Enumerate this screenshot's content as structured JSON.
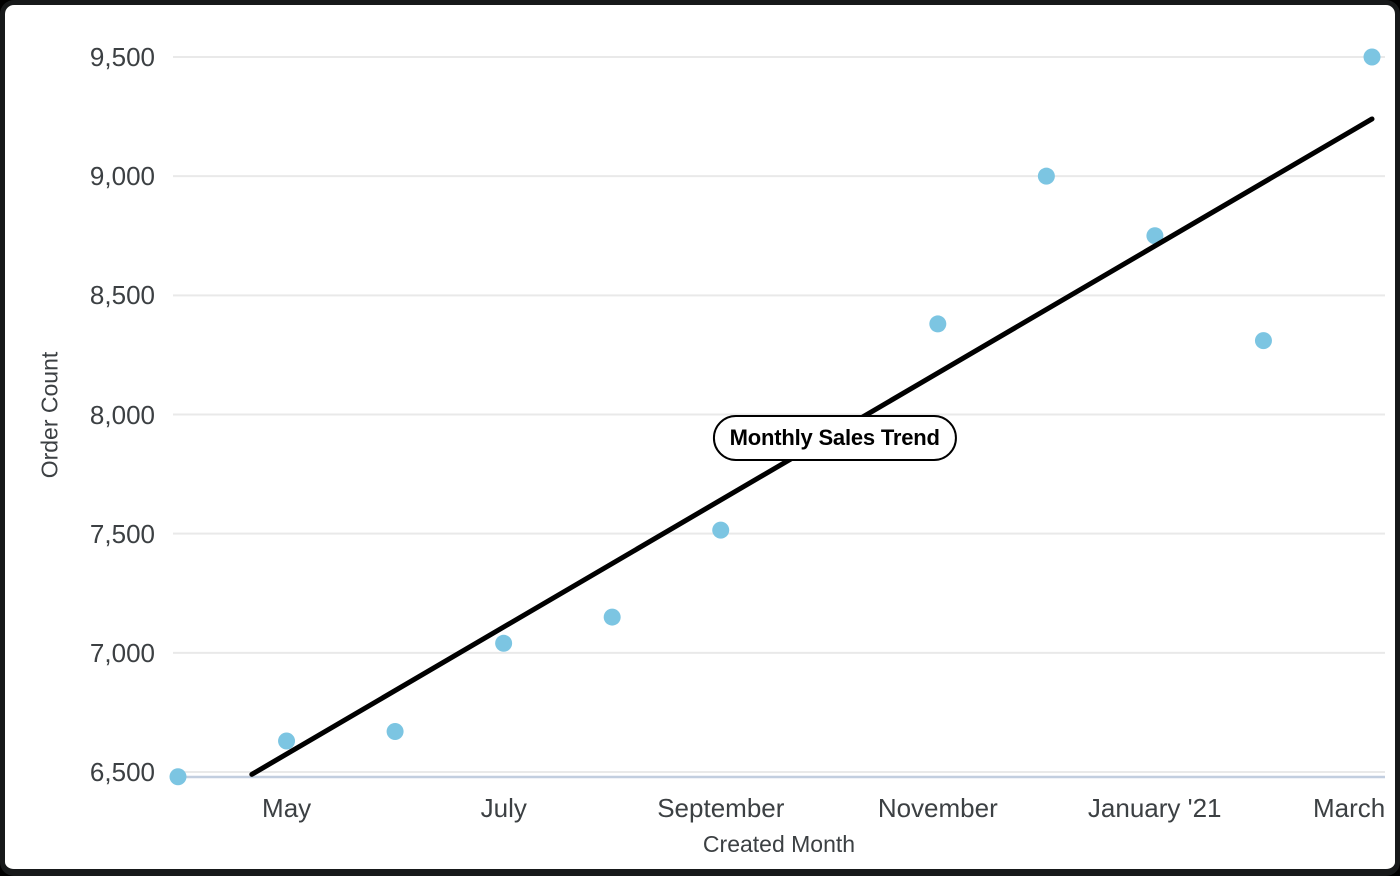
{
  "chart_data": {
    "type": "scatter",
    "xlabel": "Created Month",
    "ylabel": "Order Count",
    "ylim": [
      6500,
      9500
    ],
    "ytick_step": 500,
    "yticks": [
      {
        "value": 6500,
        "label": "6,500"
      },
      {
        "value": 7000,
        "label": "7,000"
      },
      {
        "value": 7500,
        "label": "7,500"
      },
      {
        "value": 8000,
        "label": "8,000"
      },
      {
        "value": 8500,
        "label": "8,500"
      },
      {
        "value": 9000,
        "label": "9,000"
      },
      {
        "value": 9500,
        "label": "9,500"
      }
    ],
    "xticks": [
      {
        "pos": 1,
        "label": "May"
      },
      {
        "pos": 3,
        "label": "July"
      },
      {
        "pos": 5,
        "label": "September"
      },
      {
        "pos": 7,
        "label": "November"
      },
      {
        "pos": 9,
        "label": "January '21"
      },
      {
        "pos": 11,
        "label": "March"
      }
    ],
    "points": [
      {
        "x": 0,
        "y": 6480
      },
      {
        "x": 1,
        "y": 6630
      },
      {
        "x": 2,
        "y": 6670
      },
      {
        "x": 3,
        "y": 7040
      },
      {
        "x": 4,
        "y": 7150
      },
      {
        "x": 5,
        "y": 7515
      },
      {
        "x": 7,
        "y": 8380
      },
      {
        "x": 8,
        "y": 9000
      },
      {
        "x": 9,
        "y": 8750
      },
      {
        "x": 10,
        "y": 8310
      },
      {
        "x": 11,
        "y": 9500
      }
    ],
    "trend_line": {
      "x1": 0.68,
      "y1": 6490,
      "x2": 11,
      "y2": 9240
    },
    "annotation": {
      "label": "Monthly Sales Trend",
      "x": 6.05,
      "y": 7900
    },
    "grid": true,
    "legend": "none",
    "colors": {
      "point": "#7cc5e2",
      "trend": "#000000",
      "gridline": "#e9e9e9",
      "baseline": "#c2cedf",
      "axis_text": "#3c4043",
      "card_border": "#17191a",
      "background": "#ffffff"
    }
  }
}
